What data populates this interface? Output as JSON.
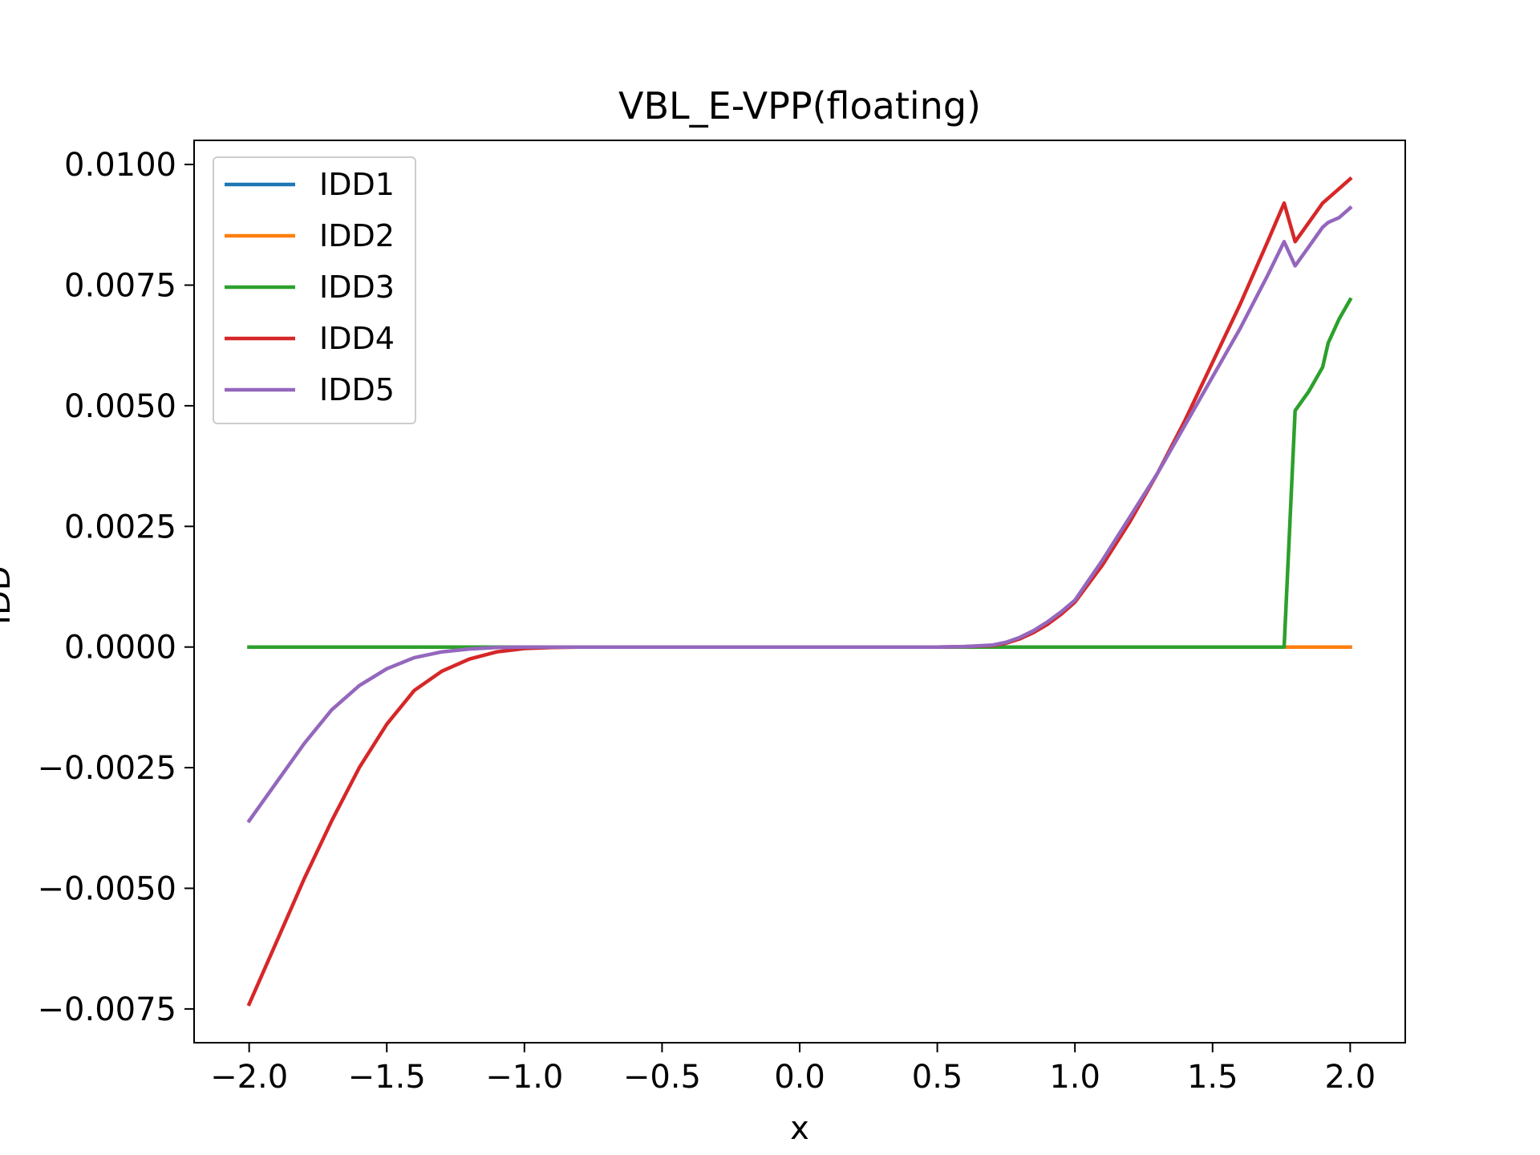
{
  "chart_data": {
    "type": "line",
    "title": "VBL_E-VPP(floating)",
    "xlabel": "x",
    "ylabel": "IDD",
    "xlim": [
      -2.2,
      2.2
    ],
    "ylim": [
      -0.0082,
      0.0105
    ],
    "xticks": [
      -2.0,
      -1.5,
      -1.0,
      -0.5,
      0.0,
      0.5,
      1.0,
      1.5,
      2.0
    ],
    "xtick_labels": [
      "−2.0",
      "−1.5",
      "−1.0",
      "−0.5",
      "0.0",
      "0.5",
      "1.0",
      "1.5",
      "2.0"
    ],
    "yticks": [
      -0.0075,
      -0.005,
      -0.0025,
      0.0,
      0.0025,
      0.005,
      0.0075,
      0.01
    ],
    "ytick_labels": [
      "−0.0075",
      "−0.0050",
      "−0.0025",
      "0.0000",
      "0.0025",
      "0.0050",
      "0.0075",
      "0.0100"
    ],
    "grid": false,
    "legend_position": "top-left",
    "x": [
      -2.0,
      -1.9,
      -1.8,
      -1.7,
      -1.6,
      -1.5,
      -1.4,
      -1.3,
      -1.2,
      -1.1,
      -1.0,
      -0.9,
      -0.8,
      -0.7,
      -0.6,
      -0.5,
      -0.4,
      -0.3,
      -0.2,
      -0.1,
      0.0,
      0.1,
      0.2,
      0.3,
      0.4,
      0.5,
      0.6,
      0.7,
      0.75,
      0.8,
      0.85,
      0.9,
      0.95,
      1.0,
      1.1,
      1.2,
      1.3,
      1.4,
      1.5,
      1.6,
      1.7,
      1.76,
      1.8,
      1.85,
      1.9,
      1.92,
      1.96,
      2.0
    ],
    "series": [
      {
        "name": "IDD1",
        "color": "#1f77b4",
        "values": [
          0,
          0,
          0,
          0,
          0,
          0,
          0,
          0,
          0,
          0,
          0,
          0,
          0,
          0,
          0,
          0,
          0,
          0,
          0,
          0,
          0,
          0,
          0,
          0,
          0,
          0,
          0,
          0,
          0,
          0,
          0,
          0,
          0,
          0,
          0,
          0,
          0,
          0,
          0,
          0,
          0,
          0,
          0,
          0,
          0,
          0,
          0,
          0
        ]
      },
      {
        "name": "IDD2",
        "color": "#ff7f0e",
        "values": [
          0,
          0,
          0,
          0,
          0,
          0,
          0,
          0,
          0,
          0,
          0,
          0,
          0,
          0,
          0,
          0,
          0,
          0,
          0,
          0,
          0,
          0,
          0,
          0,
          0,
          0,
          0,
          0,
          0,
          0,
          0,
          0,
          0,
          0,
          0,
          0,
          0,
          0,
          0,
          0,
          0,
          0,
          0,
          0,
          0,
          0,
          0,
          0
        ]
      },
      {
        "name": "IDD3",
        "color": "#2ca02c",
        "values": [
          0,
          0,
          0,
          0,
          0,
          0,
          0,
          0,
          0,
          0,
          0,
          0,
          0,
          0,
          0,
          0,
          0,
          0,
          0,
          0,
          0,
          0,
          0,
          0,
          0,
          0,
          0,
          0,
          0,
          0,
          0,
          0,
          0,
          0,
          0,
          0,
          0,
          0,
          0,
          0,
          0,
          0,
          0.0049,
          0.0053,
          0.0058,
          0.0063,
          0.0068,
          0.0072
        ]
      },
      {
        "name": "IDD4",
        "color": "#d62728",
        "values": [
          -0.0074,
          -0.0061,
          -0.0048,
          -0.0036,
          -0.0025,
          -0.0016,
          -0.0009,
          -0.0005,
          -0.00025,
          -0.0001,
          -3e-05,
          -1e-05,
          0,
          0,
          0,
          0,
          0,
          0,
          0,
          0,
          0,
          0,
          0,
          0,
          0,
          0,
          1e-05,
          3e-05,
          8e-05,
          0.00017,
          0.0003,
          0.00047,
          0.00068,
          0.00093,
          0.0017,
          0.0026,
          0.0036,
          0.0047,
          0.0059,
          0.0071,
          0.0084,
          0.0092,
          0.0084,
          0.0088,
          0.0092,
          0.0093,
          0.0095,
          0.0097
        ]
      },
      {
        "name": "IDD5",
        "color": "#9467bd",
        "values": [
          -0.0036,
          -0.0028,
          -0.002,
          -0.0013,
          -0.0008,
          -0.00045,
          -0.00022,
          -0.0001,
          -4e-05,
          -1e-05,
          0,
          0,
          0,
          0,
          0,
          0,
          0,
          0,
          0,
          0,
          0,
          0,
          0,
          0,
          0,
          0,
          1e-05,
          4e-05,
          0.0001,
          0.0002,
          0.00034,
          0.00052,
          0.00073,
          0.00097,
          0.0018,
          0.0027,
          0.0036,
          0.0046,
          0.0056,
          0.0066,
          0.0077,
          0.0084,
          0.0079,
          0.0083,
          0.0087,
          0.0088,
          0.0089,
          0.0091
        ]
      }
    ]
  }
}
